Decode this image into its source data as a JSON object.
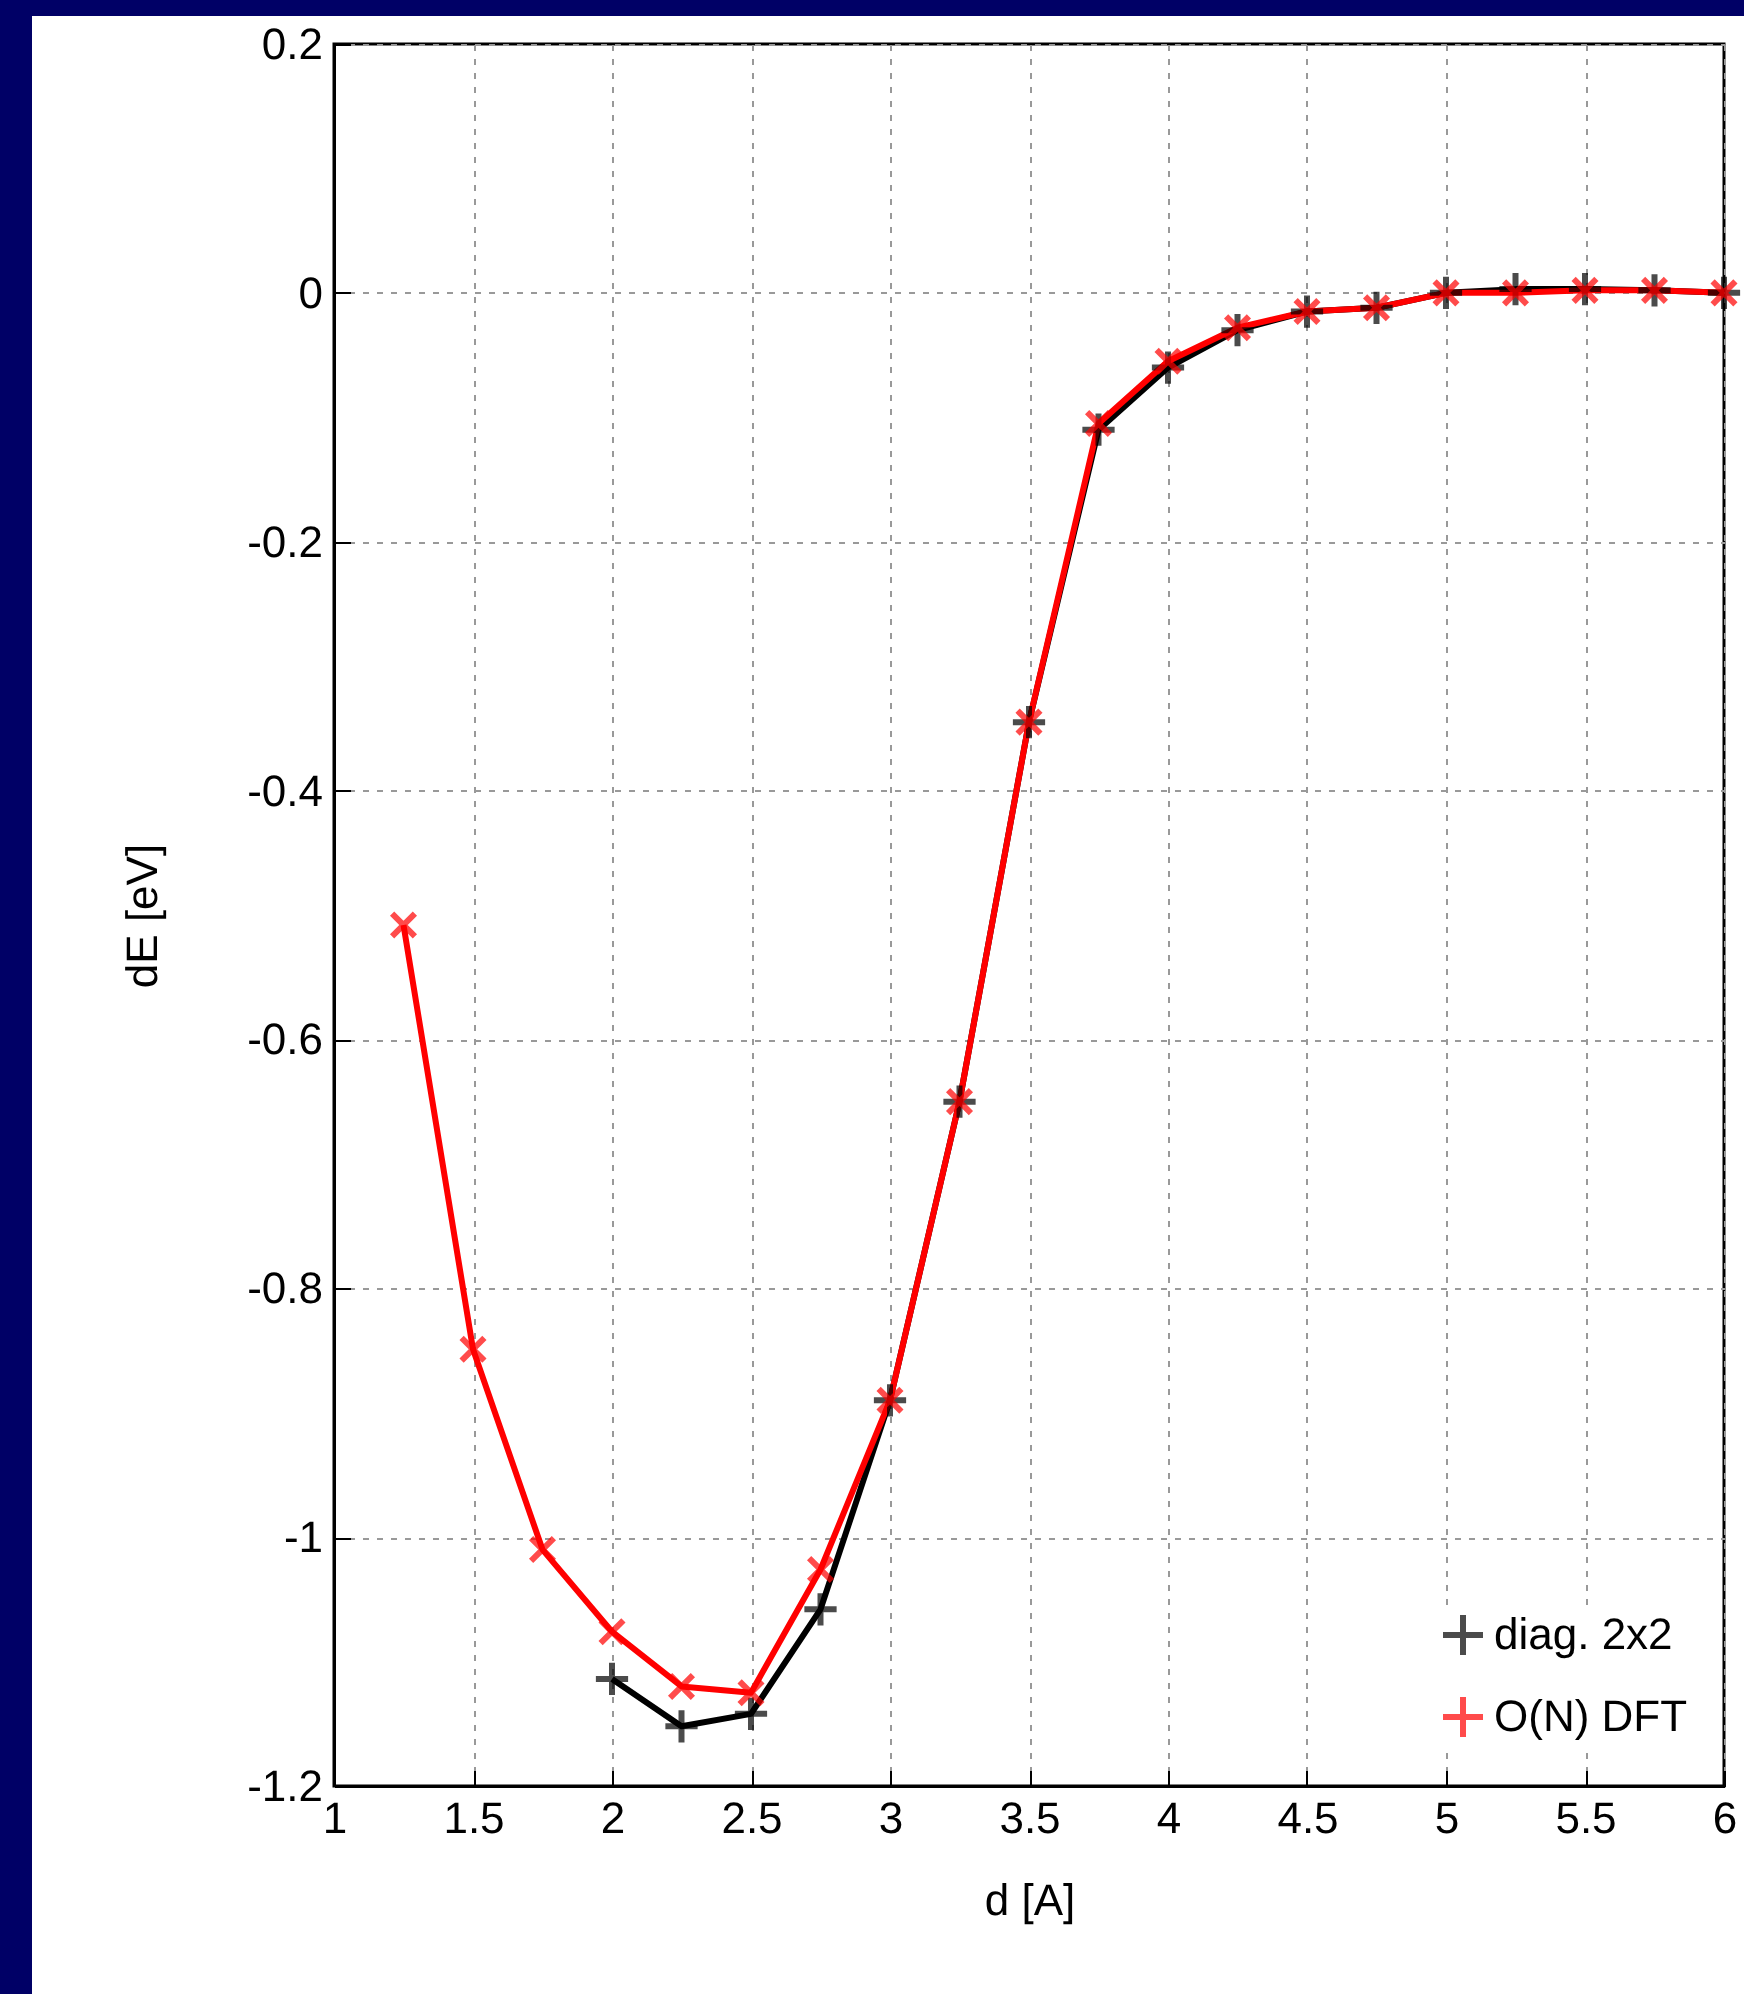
{
  "chart_data": {
    "type": "line",
    "xlabel": "d [A]",
    "ylabel": "dE [eV]",
    "x": [
      1.25,
      1.5,
      1.75,
      2.0,
      2.25,
      2.5,
      2.75,
      3.0,
      3.25,
      3.5,
      3.75,
      4.0,
      4.25,
      4.5,
      4.75,
      5.0,
      5.25,
      5.5,
      5.75,
      6.0
    ],
    "series": [
      {
        "name": "diag. 2x2",
        "color": "#000000",
        "values": [
          null,
          null,
          null,
          -1.114,
          -1.152,
          -1.142,
          -1.058,
          -0.89,
          -0.65,
          -0.345,
          -0.11,
          -0.06,
          -0.03,
          -0.015,
          -0.012,
          0,
          0.003,
          0.003,
          0.002,
          0
        ]
      },
      {
        "name": "O(N) DFT",
        "color": "#ff0000",
        "values": [
          -0.508,
          -0.849,
          -1.01,
          -1.076,
          -1.12,
          -1.125,
          -1.026,
          -0.89,
          -0.65,
          -0.345,
          -0.105,
          -0.055,
          -0.028,
          -0.015,
          -0.012,
          0,
          0,
          0.002,
          0.002,
          0
        ]
      }
    ],
    "xlim": [
      1,
      6
    ],
    "xticks": [
      1,
      1.5,
      2,
      2.5,
      3,
      3.5,
      4,
      4.5,
      5,
      5.5,
      6
    ],
    "ylim": [
      -1.2,
      0.2
    ],
    "yticks": [
      -1.2,
      -1,
      -0.8,
      -0.6,
      -0.4,
      -0.2,
      0,
      0.2
    ],
    "grid": true,
    "legend": "bottom right",
    "marker": "cross",
    "line_style": "solid"
  }
}
